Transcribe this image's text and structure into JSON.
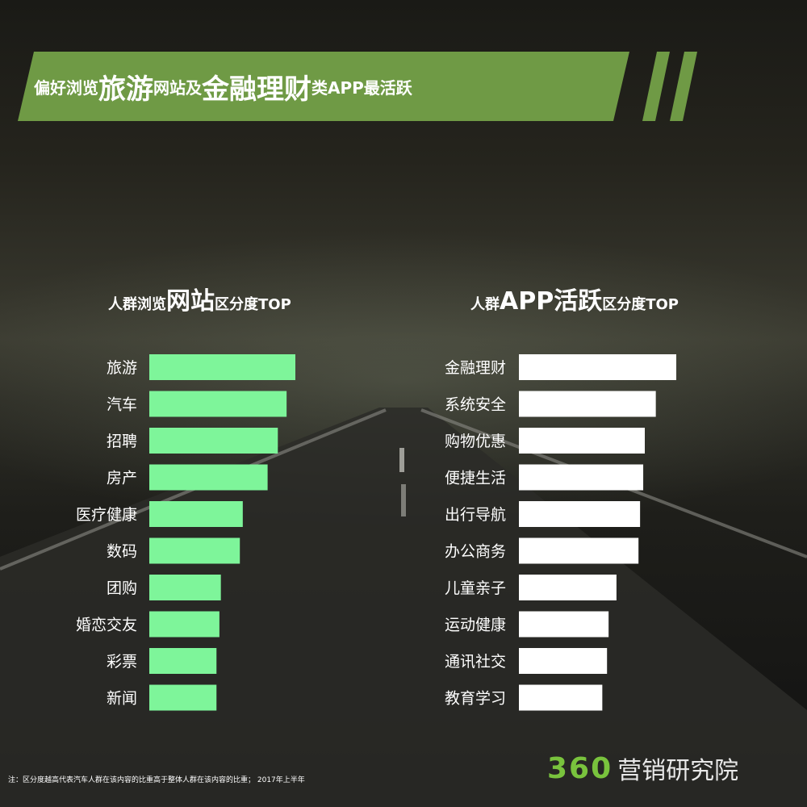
{
  "banner": {
    "parts": [
      {
        "text": "偏好浏览",
        "size": "s"
      },
      {
        "text": "旅游",
        "size": "b"
      },
      {
        "text": "网站及",
        "size": "s"
      },
      {
        "text": "金融理财",
        "size": "b"
      },
      {
        "text": "类APP最活跃",
        "size": "s"
      }
    ]
  },
  "colors": {
    "banner": "#6f9a45",
    "web_bar": "#7ef59a",
    "app_bar": "#ffffff",
    "logo": "#79c33d"
  },
  "web_chart": {
    "title_parts": [
      {
        "text": "人群浏览",
        "size": "s"
      },
      {
        "text": "网站",
        "size": "b"
      },
      {
        "text": "区分度TOP",
        "size": "s"
      }
    ]
  },
  "app_chart": {
    "title_parts": [
      {
        "text": "人群",
        "size": "s"
      },
      {
        "text": "APP活跃",
        "size": "b"
      },
      {
        "text": "区分度TOP",
        "size": "s"
      }
    ]
  },
  "chart_data": [
    {
      "type": "bar",
      "orientation": "horizontal",
      "categories": [
        "旅游",
        "汽车",
        "招聘",
        "房产",
        "医疗健康",
        "数码",
        "团购",
        "婚恋交友",
        "彩票",
        "新闻"
      ],
      "values": [
        100,
        94,
        88,
        81,
        64,
        62,
        49,
        48,
        46,
        46
      ],
      "value_unit": "relative bar length (0-100)",
      "xlim": [
        0,
        100
      ],
      "grid": false
    },
    {
      "type": "bar",
      "orientation": "horizontal",
      "categories": [
        "金融理财",
        "系统安全",
        "购物优惠",
        "便捷生活",
        "出行导航",
        "办公商务",
        "儿童亲子",
        "运动健康",
        "通讯社交",
        "教育学习"
      ],
      "values": [
        100,
        87,
        80,
        79,
        77,
        76,
        62,
        57,
        56,
        53
      ],
      "value_unit": "relative bar length (0-100)",
      "xlim": [
        0,
        100
      ],
      "grid": false
    }
  ],
  "footnote": "注：区分度越高代表汽车人群在该内容的比重高于整体人群在该内容的比重； 2017年上半年",
  "logo": {
    "number": "360",
    "text": "营销研究院"
  }
}
